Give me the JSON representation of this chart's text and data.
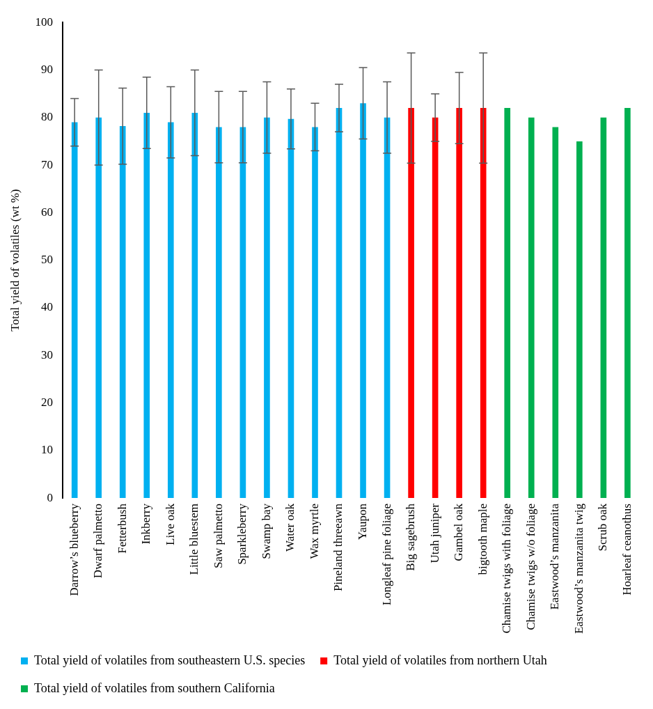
{
  "chart_data": {
    "type": "bar",
    "ylabel": "Total yield of volatiles (wt %)",
    "categories": [
      "Darrow’s blueberry",
      "Dwarf palmetto",
      "Fetterbush",
      "Inkberry",
      "Live oak",
      "Little bluestem",
      "Saw palmetto",
      "Sparkleberry",
      "Swamp bay",
      "Water oak",
      "Wax myrtle",
      "Pineland threeawn",
      "Yaupon",
      "Longleaf pine foliage",
      "Big sagebrush",
      "Utah juniper",
      "Gambel oak",
      "bigtooth maple",
      "Chamise twigs with foliage",
      "Chamise twigs w/o foliage",
      "Eastwood’s manzanita",
      "Eastwood’s manzanita twig",
      "Scrub oak",
      "Hoarleaf ceanothus"
    ],
    "series": [
      {
        "name": "Total yield of volatiles from southeastern U.S. species",
        "color": "#00b0f0",
        "values": [
          79,
          80,
          78.2,
          81,
          79,
          81,
          78,
          78,
          80,
          79.7,
          78,
          82,
          83,
          80,
          null,
          null,
          null,
          null,
          null,
          null,
          null,
          null,
          null,
          null
        ],
        "errors": [
          5,
          10,
          8,
          7.5,
          7.5,
          9,
          7.5,
          7.5,
          7.5,
          6.3,
          5,
          5,
          7.5,
          7.5,
          null,
          null,
          null,
          null,
          null,
          null,
          null,
          null,
          null,
          null
        ]
      },
      {
        "name": "Total yield of volatiles from northern Utah",
        "color": "#ff0000",
        "values": [
          null,
          null,
          null,
          null,
          null,
          null,
          null,
          null,
          null,
          null,
          null,
          null,
          null,
          null,
          82,
          80,
          82,
          82,
          null,
          null,
          null,
          null,
          null,
          null
        ],
        "errors": [
          null,
          null,
          null,
          null,
          null,
          null,
          null,
          null,
          null,
          null,
          null,
          null,
          null,
          null,
          11.6,
          5,
          7.5,
          11.6,
          null,
          null,
          null,
          null,
          null,
          null
        ]
      },
      {
        "name": "Total yield of volatiles from southern California",
        "color": "#00b050",
        "values": [
          null,
          null,
          null,
          null,
          null,
          null,
          null,
          null,
          null,
          null,
          null,
          null,
          null,
          null,
          null,
          null,
          null,
          null,
          82,
          80,
          78,
          75,
          80,
          82
        ]
      }
    ],
    "ylim": [
      0,
      100
    ],
    "yticks": [
      0,
      10,
      20,
      30,
      40,
      50,
      60,
      70,
      80,
      90,
      100
    ],
    "grid": false,
    "legend": "bottom"
  }
}
